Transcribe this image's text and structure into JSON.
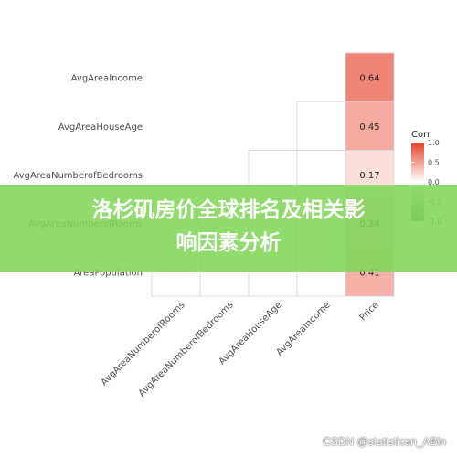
{
  "chart_data": {
    "type": "heatmap",
    "rows": [
      "AvgAreaIncome",
      "AvgAreaHouseAge",
      "AvgAreaNumberofBedrooms",
      "AvgAreaNumberofRooms",
      "AreaPopulation"
    ],
    "columns": [
      "AvgAreaNumberofRooms",
      "AvgAreaNumberofBedrooms",
      "AvgAreaHouseAge",
      "AvgAreaIncome",
      "Price"
    ],
    "price_values": [
      0.64,
      0.45,
      0.17,
      0.34,
      0.41
    ],
    "legend": {
      "title": "Corr",
      "ticks": [
        1.0,
        0.5,
        0.0,
        -0.5,
        -1.0
      ],
      "tick_labels": [
        "1.0",
        "0.5",
        "0.0",
        "-0.5",
        "-1.0"
      ],
      "high_color": "#e8412a",
      "mid_color": "#ffffff",
      "low_color": "#5b8a76"
    },
    "grid": false,
    "legend_position": "right"
  },
  "banner": {
    "title_line1": "洛杉矶房价全球排名及相关影",
    "title_line2": "响因素分析",
    "background": "#80d658"
  },
  "watermark": "CSDN @statistican_ABin"
}
